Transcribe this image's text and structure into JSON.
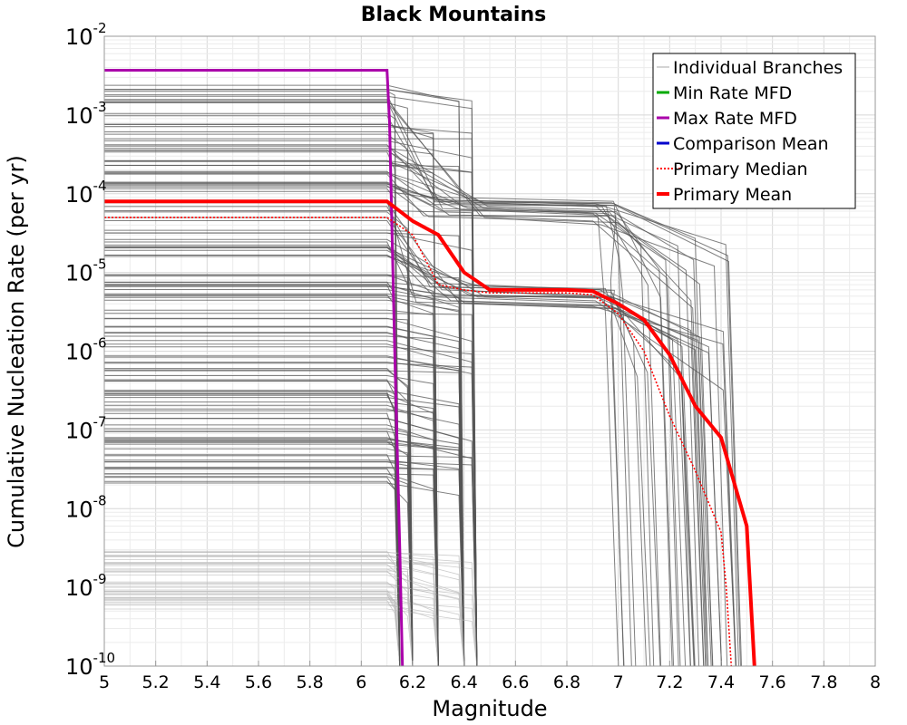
{
  "chart_data": {
    "type": "line",
    "title": "Black Mountains",
    "xlabel": "Magnitude",
    "ylabel": "Cumulative Nucleation Rate (per yr)",
    "xlim": [
      5,
      8
    ],
    "ylim": [
      1e-10,
      0.01
    ],
    "y_scale": "log",
    "grid": true,
    "x_ticks": [
      "5",
      "5.2",
      "5.4",
      "5.6",
      "5.8",
      "6",
      "6.2",
      "6.4",
      "6.6",
      "6.8",
      "7",
      "7.2",
      "7.4",
      "7.6",
      "7.8",
      "8"
    ],
    "y_ticks": [
      {
        "base": "10",
        "exp": "-2"
      },
      {
        "base": "10",
        "exp": "-3"
      },
      {
        "base": "10",
        "exp": "-4"
      },
      {
        "base": "10",
        "exp": "-5"
      },
      {
        "base": "10",
        "exp": "-6"
      },
      {
        "base": "10",
        "exp": "-7"
      },
      {
        "base": "10",
        "exp": "-8"
      },
      {
        "base": "10",
        "exp": "-9"
      },
      {
        "base": "10",
        "exp": "-10"
      }
    ],
    "legend_position": "top-right",
    "legend": [
      {
        "label": "Individual Branches",
        "color": "#aaaaaa",
        "style": "solid-thin"
      },
      {
        "label": "Min Rate MFD",
        "color": "#00aa00",
        "style": "solid"
      },
      {
        "label": "Max Rate MFD",
        "color": "#aa00aa",
        "style": "solid"
      },
      {
        "label": "Comparison Mean",
        "color": "#0000cc",
        "style": "solid"
      },
      {
        "label": " Primary Median",
        "color": "#ff0000",
        "style": "dotted"
      },
      {
        "label": "Primary Mean",
        "color": "#ff0000",
        "style": "solid-thick"
      }
    ],
    "series": [
      {
        "name": "Max Rate MFD",
        "color": "#aa00aa",
        "x": [
          5.0,
          6.1,
          6.11,
          6.13,
          6.15,
          6.16
        ],
        "y": [
          0.0037,
          0.0037,
          0.0008,
          1e-06,
          3e-09,
          1e-10
        ]
      },
      {
        "name": "Primary Median",
        "color": "#ff0000",
        "x": [
          5.0,
          6.1,
          6.2,
          6.3,
          6.4,
          6.5,
          6.6,
          6.8,
          6.9,
          7.0,
          7.1,
          7.2,
          7.3,
          7.4,
          7.42,
          7.44
        ],
        "y": [
          5e-05,
          5e-05,
          3e-05,
          7e-06,
          6e-06,
          5.5e-06,
          5.5e-06,
          5.5e-06,
          5.2e-06,
          3e-06,
          1e-06,
          1.5e-07,
          3e-08,
          5e-09,
          1e-09,
          1e-10
        ]
      },
      {
        "name": "Primary Mean",
        "color": "#ff0000",
        "x": [
          5.0,
          6.1,
          6.2,
          6.3,
          6.4,
          6.5,
          6.6,
          6.8,
          6.9,
          7.0,
          7.1,
          7.2,
          7.3,
          7.4,
          7.5,
          7.53
        ],
        "y": [
          8e-05,
          8e-05,
          4.5e-05,
          3e-05,
          1e-05,
          6e-06,
          6e-06,
          6e-06,
          5.8e-06,
          4e-06,
          2.5e-06,
          9e-07,
          2e-07,
          8e-08,
          6e-09,
          1e-10
        ]
      }
    ],
    "individual_branches": {
      "count": 180,
      "low_rate_range": [
        5e-10,
        3e-09
      ],
      "step_magnitudes": [
        6.1,
        6.2,
        6.3,
        6.4,
        7.0,
        7.1,
        7.2,
        7.3,
        7.4,
        7.5
      ]
    }
  }
}
